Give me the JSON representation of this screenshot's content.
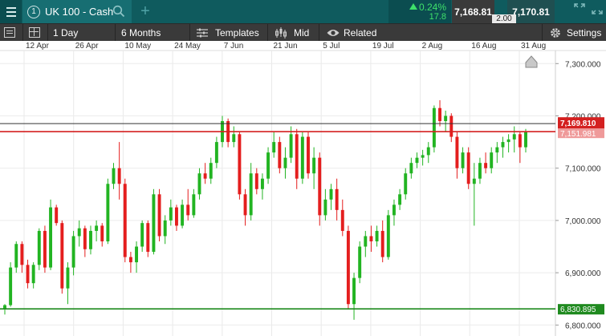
{
  "market": {
    "tab_number": "1",
    "name": "UK 100 - Cash",
    "change_pct": "0.24%",
    "change_pts": "17.8",
    "sell": "7,168.81",
    "buy": "7,170.81",
    "spread": "2.00"
  },
  "toolbar": {
    "interval": "1 Day",
    "range": "6 Months",
    "templates": "Templates",
    "price_type": "Mid",
    "related": "Related",
    "settings": "Settings"
  },
  "colors": {
    "up": "#22b422",
    "down": "#e41e1e",
    "topbar": "#0f5b5e",
    "toolbar": "#3a3a3a",
    "current_price": "#d42020",
    "support": "#1f8a1f"
  },
  "icons": [
    "menu-icon",
    "search-icon",
    "add-tab-icon",
    "expand-icon",
    "collapse-icon",
    "sidebar-icon",
    "layout-icon",
    "templates-icon",
    "candles-icon",
    "eye-icon",
    "gear-icon"
  ],
  "chart_data": {
    "type": "candlestick",
    "x_tick_labels": [
      "12 Apr",
      "26 Apr",
      "10 May",
      "24 May",
      "7 Jun",
      "21 Jun",
      "5 Jul",
      "19 Jul",
      "2 Aug",
      "16 Aug",
      "31 Aug"
    ],
    "y_tick_labels": [
      "7,300.000",
      "7,200.000",
      "7,100.000",
      "7,000.000",
      "6,900.000",
      "6,800.000"
    ],
    "y_ticks": [
      7300,
      7200,
      7100,
      7000,
      6900,
      6800
    ],
    "ylim": [
      6779,
      7325
    ],
    "grid": true,
    "current_price_label": "7,169.810",
    "current_price": 7169.81,
    "support_level_label": "6,830.895",
    "support_level": 6830.895,
    "previous_close_label": "7,151.981",
    "previous_close": 7151.98,
    "ohlc": [
      [
        6830,
        6840,
        6820,
        6838
      ],
      [
        6838,
        6920,
        6835,
        6910
      ],
      [
        6910,
        6960,
        6900,
        6955
      ],
      [
        6955,
        6960,
        6900,
        6915
      ],
      [
        6915,
        6925,
        6870,
        6880
      ],
      [
        6880,
        6920,
        6870,
        6915
      ],
      [
        6915,
        6985,
        6905,
        6980
      ],
      [
        6980,
        6990,
        6900,
        6910
      ],
      [
        6910,
        7040,
        6905,
        7025
      ],
      [
        7025,
        7030,
        6990,
        6995
      ],
      [
        6995,
        7000,
        6860,
        6870
      ],
      [
        6870,
        6920,
        6840,
        6910
      ],
      [
        6910,
        6980,
        6895,
        6970
      ],
      [
        6970,
        7000,
        6950,
        6985
      ],
      [
        6985,
        6990,
        6930,
        6945
      ],
      [
        6945,
        6990,
        6935,
        6980
      ],
      [
        6980,
        7000,
        6960,
        6990
      ],
      [
        6990,
        6995,
        6950,
        6960
      ],
      [
        6960,
        7080,
        6955,
        7070
      ],
      [
        7070,
        7110,
        7060,
        7100
      ],
      [
        7100,
        7150,
        7040,
        7070
      ],
      [
        7070,
        7080,
        6920,
        6930
      ],
      [
        6930,
        6940,
        6900,
        6920
      ],
      [
        6920,
        6960,
        6900,
        6950
      ],
      [
        6950,
        7000,
        6940,
        6995
      ],
      [
        6995,
        7000,
        6930,
        6940
      ],
      [
        6940,
        7060,
        6935,
        7050
      ],
      [
        7050,
        7060,
        6960,
        6970
      ],
      [
        6970,
        7010,
        6955,
        7000
      ],
      [
        7000,
        7040,
        6990,
        7025
      ],
      [
        7025,
        7030,
        6980,
        6990
      ],
      [
        6990,
        7040,
        6985,
        7030
      ],
      [
        7030,
        7060,
        7000,
        7010
      ],
      [
        7010,
        7060,
        7005,
        7050
      ],
      [
        7050,
        7100,
        7040,
        7090
      ],
      [
        7090,
        7110,
        7070,
        7080
      ],
      [
        7080,
        7120,
        7070,
        7110
      ],
      [
        7110,
        7160,
        7100,
        7150
      ],
      [
        7150,
        7200,
        7140,
        7190
      ],
      [
        7190,
        7195,
        7140,
        7150
      ],
      [
        7150,
        7180,
        7140,
        7165
      ],
      [
        7165,
        7170,
        7040,
        7050
      ],
      [
        7050,
        7060,
        6990,
        7010
      ],
      [
        7010,
        7110,
        7000,
        7090
      ],
      [
        7090,
        7100,
        7050,
        7060
      ],
      [
        7060,
        7090,
        7040,
        7080
      ],
      [
        7080,
        7140,
        7070,
        7130
      ],
      [
        7130,
        7170,
        7120,
        7150
      ],
      [
        7150,
        7160,
        7090,
        7100
      ],
      [
        7100,
        7140,
        7080,
        7120
      ],
      [
        7120,
        7180,
        7110,
        7165
      ],
      [
        7165,
        7175,
        7060,
        7080
      ],
      [
        7080,
        7170,
        7070,
        7160
      ],
      [
        7160,
        7170,
        7080,
        7090
      ],
      [
        7090,
        7140,
        7060,
        7120
      ],
      [
        7120,
        7130,
        6990,
        7010
      ],
      [
        7010,
        7060,
        7000,
        7040
      ],
      [
        7040,
        7070,
        7020,
        7060
      ],
      [
        7060,
        7080,
        7000,
        7020
      ],
      [
        7020,
        7040,
        6970,
        6980
      ],
      [
        6980,
        6990,
        6830,
        6840
      ],
      [
        6840,
        6900,
        6810,
        6890
      ],
      [
        6890,
        6960,
        6880,
        6950
      ],
      [
        6950,
        6980,
        6930,
        6970
      ],
      [
        6970,
        6990,
        6940,
        6960
      ],
      [
        6960,
        6990,
        6950,
        6980
      ],
      [
        6980,
        7000,
        6920,
        6930
      ],
      [
        6930,
        7020,
        6925,
        7010
      ],
      [
        7010,
        7040,
        6990,
        7030
      ],
      [
        7030,
        7060,
        7020,
        7050
      ],
      [
        7050,
        7100,
        7040,
        7090
      ],
      [
        7090,
        7120,
        7080,
        7110
      ],
      [
        7110,
        7130,
        7100,
        7120
      ],
      [
        7120,
        7135,
        7105,
        7125
      ],
      [
        7125,
        7150,
        7110,
        7140
      ],
      [
        7140,
        7220,
        7130,
        7215
      ],
      [
        7215,
        7230,
        7180,
        7190
      ],
      [
        7190,
        7210,
        7170,
        7200
      ],
      [
        7200,
        7205,
        7150,
        7160
      ],
      [
        7160,
        7170,
        7080,
        7100
      ],
      [
        7100,
        7140,
        7090,
        7130
      ],
      [
        7130,
        7140,
        7060,
        7070
      ],
      [
        7070,
        7110,
        6990,
        7080
      ],
      [
        7080,
        7120,
        7070,
        7110
      ],
      [
        7110,
        7130,
        7090,
        7100
      ],
      [
        7100,
        7140,
        7090,
        7130
      ],
      [
        7130,
        7150,
        7110,
        7140
      ],
      [
        7140,
        7160,
        7120,
        7150
      ],
      [
        7150,
        7165,
        7130,
        7155
      ],
      [
        7155,
        7180,
        7130,
        7165
      ],
      [
        7165,
        7170,
        7110,
        7140
      ],
      [
        7140,
        7175,
        7130,
        7170
      ]
    ]
  }
}
